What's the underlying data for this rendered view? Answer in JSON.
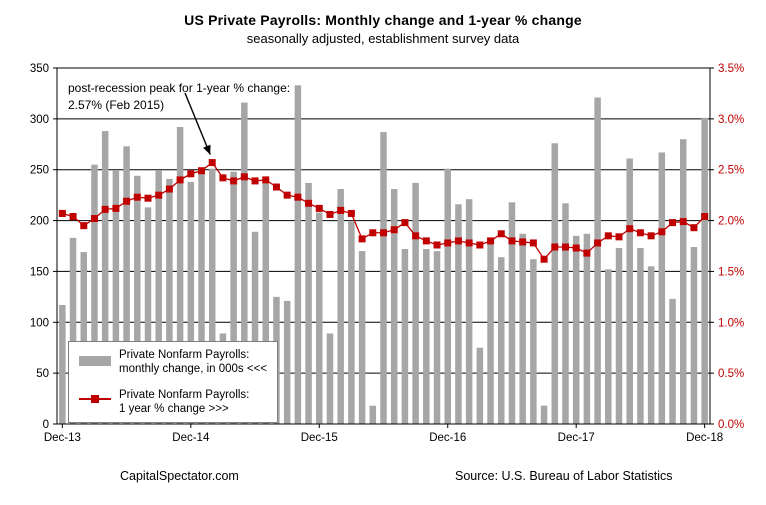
{
  "title": "US Private Payrolls: Monthly change and 1-year % change",
  "subtitle": "seasonally adjusted, establishment survey data",
  "annotation": {
    "line1": "post-recession peak for 1-year % change:",
    "line2": "2.57% (Feb 2015)"
  },
  "legend": {
    "bars_line1": "Private Nonfarm Payrolls:",
    "bars_line2": "monthly change, in 000s <<<",
    "line_line1": "Private Nonfarm Payrolls:",
    "line_line2": "1 year % change >>>"
  },
  "footer": {
    "left": "CapitalSpectator.com",
    "right": "Source: U.S. Bureau of Labor Statistics"
  },
  "colors": {
    "bar": "#a6a6a6",
    "line": "#c00000",
    "marker": "#c00000",
    "right_axis_text": "#c00000",
    "left_axis_text": "#000000",
    "grid": "#000000"
  },
  "chart_data": {
    "type": "combo-bar-line",
    "n_points": 61,
    "x_start": "Dec-13",
    "x_end": "Dec-18",
    "x_ticks": [
      {
        "index": 0,
        "label": "Dec-13"
      },
      {
        "index": 12,
        "label": "Dec-14"
      },
      {
        "index": 24,
        "label": "Dec-15"
      },
      {
        "index": 36,
        "label": "Dec-16"
      },
      {
        "index": 48,
        "label": "Dec-17"
      },
      {
        "index": 60,
        "label": "Dec-18"
      }
    ],
    "left_axis": {
      "min": 0,
      "max": 350,
      "step": 50,
      "tick_values": [
        0,
        50,
        100,
        150,
        200,
        250,
        300,
        350
      ],
      "tick_labels": [
        "0",
        "50",
        "100",
        "150",
        "200",
        "250",
        "300",
        "350"
      ]
    },
    "right_axis": {
      "min": 0,
      "max": 3.5,
      "step": 0.5,
      "tick_values": [
        0,
        0.5,
        1.0,
        1.5,
        2.0,
        2.5,
        3.0,
        3.5
      ],
      "tick_labels": [
        "0.0%",
        "0.5%",
        "1.0%",
        "1.5%",
        "2.0%",
        "2.5%",
        "3.0%",
        "3.5%"
      ]
    },
    "grid": "horizontal",
    "legend_position": "bottom-left-inside",
    "series": [
      {
        "name": "Private Nonfarm Payrolls: monthly change, in 000s",
        "type": "bar",
        "axis": "left",
        "values": [
          117,
          183,
          169,
          255,
          288,
          249,
          273,
          244,
          213,
          249,
          241,
          292,
          238,
          246,
          251,
          89,
          248,
          316,
          189,
          239,
          125,
          121,
          333,
          237,
          208,
          89,
          231,
          199,
          170,
          18,
          287,
          231,
          172,
          237,
          172,
          170,
          251,
          216,
          221,
          75,
          180,
          164,
          218,
          187,
          162,
          18,
          276,
          217,
          185,
          187,
          321,
          152,
          173,
          261,
          173,
          155,
          267,
          123,
          280,
          174,
          301
        ]
      },
      {
        "name": "Private Nonfarm Payrolls: 1 year % change",
        "type": "line",
        "axis": "right",
        "values": [
          2.07,
          2.04,
          1.95,
          2.02,
          2.11,
          2.12,
          2.19,
          2.23,
          2.22,
          2.25,
          2.31,
          2.4,
          2.46,
          2.49,
          2.57,
          2.42,
          2.39,
          2.43,
          2.39,
          2.4,
          2.33,
          2.25,
          2.23,
          2.17,
          2.12,
          2.06,
          2.1,
          2.07,
          1.82,
          1.88,
          1.88,
          1.91,
          1.98,
          1.85,
          1.8,
          1.76,
          1.78,
          1.8,
          1.78,
          1.76,
          1.8,
          1.87,
          1.8,
          1.79,
          1.78,
          1.62,
          1.74,
          1.74,
          1.73,
          1.68,
          1.78,
          1.85,
          1.84,
          1.92,
          1.88,
          1.85,
          1.89,
          1.98,
          1.99,
          1.93,
          2.04
        ]
      }
    ],
    "annotation_peak": {
      "series": 1,
      "index": 14,
      "value": 2.57,
      "label": "Feb 2015"
    }
  }
}
